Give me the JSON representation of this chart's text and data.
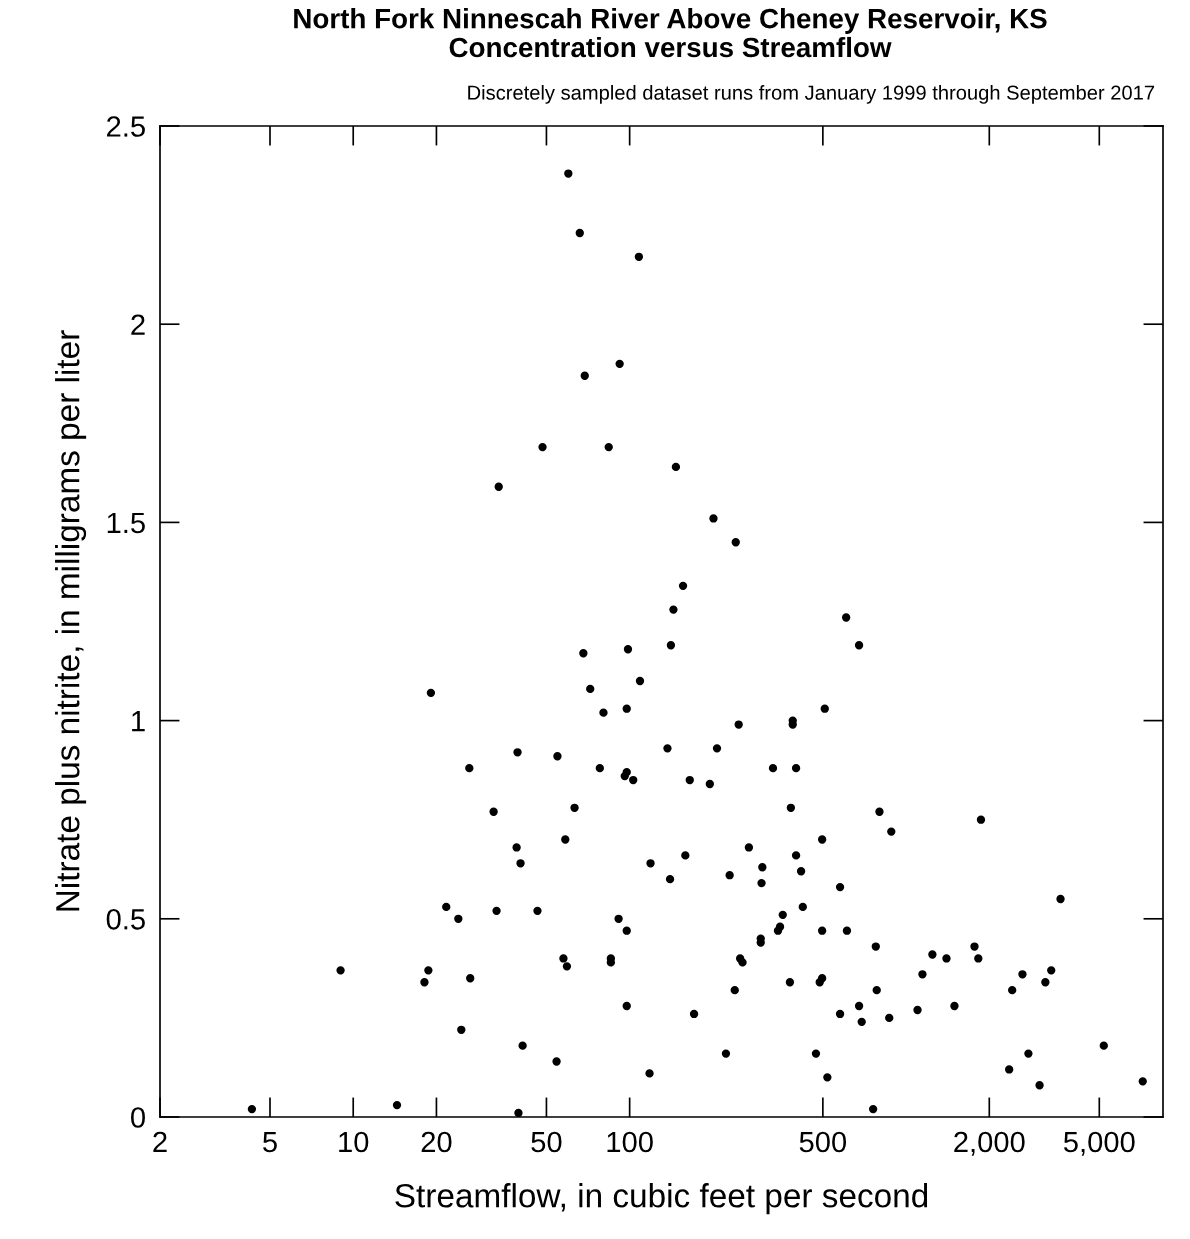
{
  "chart_data": {
    "type": "scatter",
    "title": "North Fork Ninnescah River Above Cheney Reservoir, KS\nConcentration versus Streamflow",
    "subtitle": "Discretely sampled dataset runs from January 1999 through September 2017",
    "xlabel": "Streamflow, in cubic feet per second",
    "ylabel": "Nitrate plus nitrite, in milligrams per liter",
    "log": "x",
    "grid": false,
    "marker": "circle",
    "xlim": [
      2,
      8500
    ],
    "xticks": [
      2,
      5,
      10,
      20,
      50,
      100,
      500,
      {
        "value": 2000,
        "label": "2,000"
      },
      {
        "value": 5000,
        "label": "5,000"
      }
    ],
    "ylim": [
      0,
      2.5
    ],
    "yticks": [
      0,
      0.5,
      1,
      1.5,
      2,
      2.5
    ],
    "series": [
      {
        "color": "#000000",
        "x": [
          4.3,
          9.0,
          14.4,
          18.1,
          18.7,
          19.1,
          21.7,
          24.0,
          24.6,
          26.3,
          26.5,
          32.2,
          33,
          33.6,
          39,
          39.3,
          39.6,
          40.3,
          41,
          46.4,
          48.4,
          54.4,
          54.8,
          57.6,
          58.5,
          59.3,
          60,
          63.2,
          66,
          68,
          68.8,
          72,
          78,
          80.4,
          84,
          85.5,
          85.5,
          91.2,
          92,
          96,
          97.6,
          97.6,
          97.6,
          97.6,
          98.6,
          103,
          108,
          109,
          118,
          119,
          137,
          140,
          141,
          144,
          147,
          156,
          159,
          165,
          171,
          195,
          201,
          207,
          223,
          230,
          240,
          242,
          248,
          251,
          256,
          270,
          298,
          298,
          300,
          302,
          330,
          344,
          350,
          358,
          380,
          383,
          389,
          389,
          400,
          400,
          417,
          423,
          472,
          487,
          497,
          497,
          497,
          508,
          519,
          577,
          577,
          607,
          611,
          676,
          676,
          691,
          760,
          777,
          783,
          801,
          869,
          884,
          1100,
          1146,
          1245,
          1400,
          1496,
          1768,
          1825,
          1866,
          2360,
          2420,
          2636,
          2770,
          3040,
          3190,
          3350,
          3620,
          5190,
          7180
        ],
        "values": [
          0.02,
          0.37,
          0.03,
          0.34,
          0.37,
          1.07,
          0.53,
          0.5,
          0.22,
          0.88,
          0.35,
          0.77,
          0.52,
          1.59,
          0.68,
          0.92,
          0.01,
          0.64,
          0.18,
          0.52,
          1.69,
          0.14,
          0.91,
          0.4,
          0.7,
          0.38,
          2.38,
          0.78,
          2.23,
          1.17,
          1.87,
          1.08,
          0.88,
          1.02,
          1.69,
          0.4,
          0.39,
          0.5,
          1.9,
          0.86,
          0.87,
          0.28,
          1.03,
          0.47,
          1.18,
          0.85,
          2.17,
          1.1,
          0.11,
          0.64,
          0.93,
          0.6,
          1.19,
          1.28,
          1.64,
          1.34,
          0.66,
          0.85,
          0.26,
          0.84,
          1.51,
          0.93,
          0.16,
          0.61,
          0.32,
          1.45,
          0.99,
          0.4,
          0.39,
          0.68,
          0.45,
          0.44,
          0.59,
          0.63,
          0.88,
          0.47,
          0.48,
          0.51,
          0.34,
          0.78,
          1.0,
          0.99,
          0.88,
          0.66,
          0.62,
          0.53,
          0.16,
          0.34,
          0.7,
          0.35,
          0.47,
          1.03,
          0.1,
          0.58,
          0.26,
          1.26,
          0.47,
          1.19,
          0.28,
          0.24,
          0.02,
          0.43,
          0.32,
          0.77,
          0.25,
          0.72,
          0.27,
          0.36,
          0.41,
          0.4,
          0.28,
          0.43,
          0.4,
          0.75,
          0.12,
          0.32,
          0.36,
          0.16,
          0.08,
          0.34,
          0.37,
          0.55,
          0.18,
          0.09
        ]
      }
    ]
  }
}
